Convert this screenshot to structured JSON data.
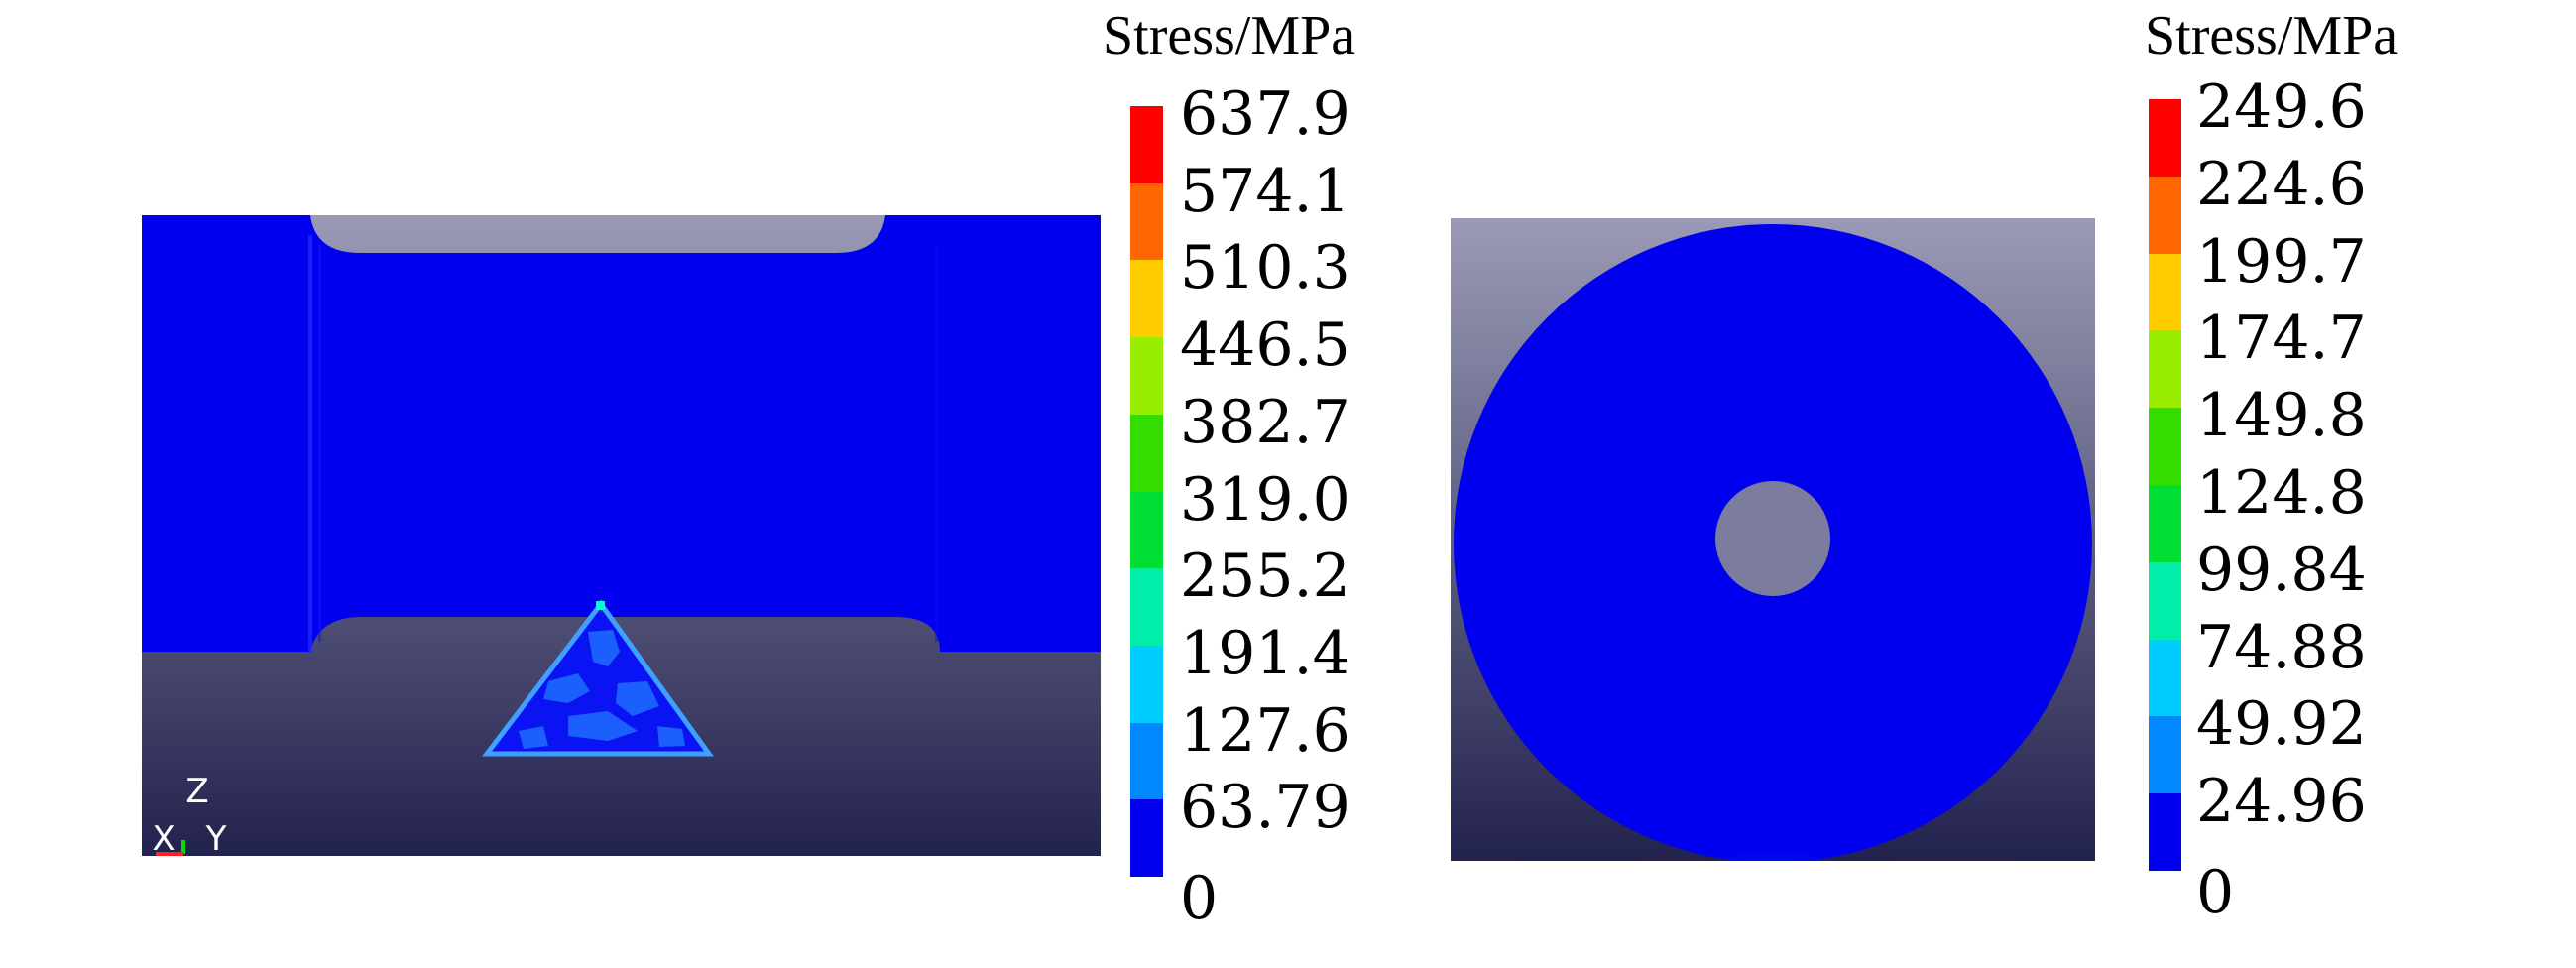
{
  "panels": [
    {
      "id": "side-view",
      "legend": {
        "title": "Stress/MPa",
        "labels": [
          "637.9",
          "574.1",
          "510.3",
          "446.5",
          "382.7",
          "319.0",
          "255.2",
          "191.4",
          "127.6",
          "63.79",
          "0"
        ]
      },
      "triad": {
        "x": "X",
        "y": "Y",
        "z": "Z"
      }
    },
    {
      "id": "front-view",
      "legend": {
        "title": "Stress/MPa",
        "labels": [
          "249.6",
          "224.6",
          "199.7",
          "174.7",
          "149.8",
          "124.8",
          "99.84",
          "74.88",
          "49.92",
          "24.96",
          "0"
        ]
      }
    }
  ],
  "colors": {
    "contour_bands": [
      "#ff0000",
      "#ff6600",
      "#ffcc00",
      "#99ee00",
      "#33dd00",
      "#00dd33",
      "#00eeaa",
      "#00ccff",
      "#0088ff",
      "#0000ee"
    ],
    "background_top": "#9898b4",
    "background_bottom": "#22224e",
    "part_blue": "#0000ee"
  }
}
